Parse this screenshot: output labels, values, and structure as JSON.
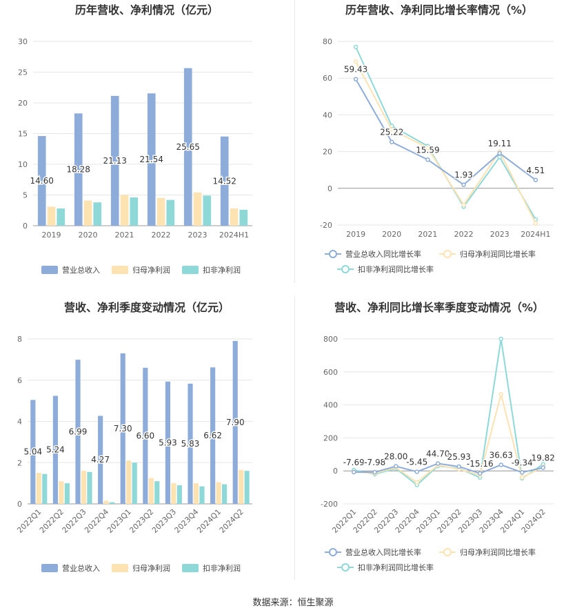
{
  "source_label": "数据来源：恒生聚源",
  "colors": {
    "revenue": "#8eacd9",
    "parent_profit": "#fde2b2",
    "nonrecurring_profit": "#8ed8d8",
    "revenue_line": "#8eacd9",
    "parent_line": "#fde2b2",
    "nonrec_line": "#8ed8d8",
    "grid": "#e6e6e6",
    "axis": "#666666",
    "title": "#333333"
  },
  "chart_data": [
    {
      "id": "annual-amount",
      "type": "bar",
      "title": "历年营收、净利情况（亿元）",
      "categories": [
        "2019",
        "2020",
        "2021",
        "2022",
        "2023",
        "2024H1"
      ],
      "ylim": [
        0,
        30
      ],
      "yticks": [
        0,
        5,
        10,
        15,
        20,
        25,
        30
      ],
      "grid": true,
      "legend_position": "bottom",
      "series": [
        {
          "name": "营业总收入",
          "values": [
            14.6,
            18.28,
            21.13,
            21.54,
            25.65,
            14.52
          ],
          "labels": [
            "14.60",
            "18.28",
            "21.13",
            "21.54",
            "25.65",
            "14.52"
          ]
        },
        {
          "name": "归母净利润",
          "values": [
            3.1,
            4.1,
            5.0,
            4.5,
            5.4,
            2.8
          ]
        },
        {
          "name": "扣非净利润",
          "values": [
            2.8,
            3.8,
            4.6,
            4.2,
            4.9,
            2.6
          ]
        }
      ]
    },
    {
      "id": "annual-growth",
      "type": "line",
      "title": "历年营收、净利同比增长率情况（%）",
      "categories": [
        "2019",
        "2020",
        "2021",
        "2022",
        "2023",
        "2024H1"
      ],
      "ylim": [
        -20,
        80
      ],
      "yticks": [
        -20,
        0,
        20,
        40,
        60,
        80
      ],
      "grid": true,
      "legend_position": "bottom",
      "series": [
        {
          "name": "营业总收入同比增长率",
          "values": [
            59.43,
            25.22,
            15.59,
            1.93,
            19.11,
            4.51
          ],
          "labels": [
            "59.43",
            "25.22",
            "15.59",
            "1.93",
            "19.11",
            "4.51"
          ]
        },
        {
          "name": "归母净利润同比增长率",
          "values": [
            69,
            32,
            22,
            -9,
            20,
            -19
          ]
        },
        {
          "name": "扣非净利润同比增长率",
          "values": [
            77,
            34,
            23,
            -10,
            17,
            -17
          ]
        }
      ]
    },
    {
      "id": "quarterly-amount",
      "type": "bar",
      "title": "营收、净利季度变动情况（亿元）",
      "categories": [
        "2022Q1",
        "2022Q2",
        "2022Q3",
        "2022Q4",
        "2023Q1",
        "2023Q2",
        "2023Q3",
        "2023Q4",
        "2024Q1",
        "2024Q2"
      ],
      "ylim": [
        0,
        8
      ],
      "yticks": [
        0,
        2,
        4,
        6,
        8
      ],
      "grid": true,
      "legend_position": "bottom",
      "series": [
        {
          "name": "营业总收入",
          "values": [
            5.04,
            5.24,
            6.99,
            4.27,
            7.3,
            6.6,
            5.93,
            5.83,
            6.62,
            7.9
          ],
          "labels": [
            "5.04",
            "5.24",
            "6.99",
            "4.27",
            "7.30",
            "6.60",
            "5.93",
            "5.83",
            "6.62",
            "7.90"
          ]
        },
        {
          "name": "归母净利润",
          "values": [
            1.5,
            1.1,
            1.6,
            0.15,
            2.1,
            1.25,
            1.0,
            1.0,
            1.05,
            1.65
          ]
        },
        {
          "name": "扣非净利润",
          "values": [
            1.45,
            1.0,
            1.55,
            0.08,
            2.0,
            1.1,
            0.9,
            0.85,
            0.95,
            1.6
          ]
        }
      ]
    },
    {
      "id": "quarterly-growth",
      "type": "line",
      "title": "营收、净利同比增长率季度变动情况（%）",
      "categories": [
        "2022Q1",
        "2022Q2",
        "2022Q3",
        "2022Q4",
        "2023Q1",
        "2023Q2",
        "2023Q3",
        "2023Q4",
        "2024Q1",
        "2024Q2"
      ],
      "ylim": [
        -200,
        800
      ],
      "yticks": [
        -200,
        0,
        200,
        400,
        600,
        800
      ],
      "grid": true,
      "legend_position": "bottom",
      "series": [
        {
          "name": "营业总收入同比增长率",
          "values": [
            -7.69,
            -7.98,
            28.0,
            -5.45,
            44.7,
            25.93,
            -15.16,
            36.63,
            -9.34,
            19.82
          ],
          "labels": [
            "-7.69",
            "-7.98",
            "28.00",
            "-5.45",
            "44.70",
            "25.93",
            "-15.16",
            "36.63",
            "-9.34",
            "19.82"
          ]
        },
        {
          "name": "归母净利润同比增长率",
          "values": [
            -5,
            -15,
            20,
            -70,
            35,
            10,
            -25,
            465,
            -40,
            25
          ]
        },
        {
          "name": "扣非净利润同比增长率",
          "values": [
            5,
            -20,
            15,
            -85,
            30,
            15,
            -40,
            800,
            -45,
            40
          ]
        }
      ]
    }
  ]
}
